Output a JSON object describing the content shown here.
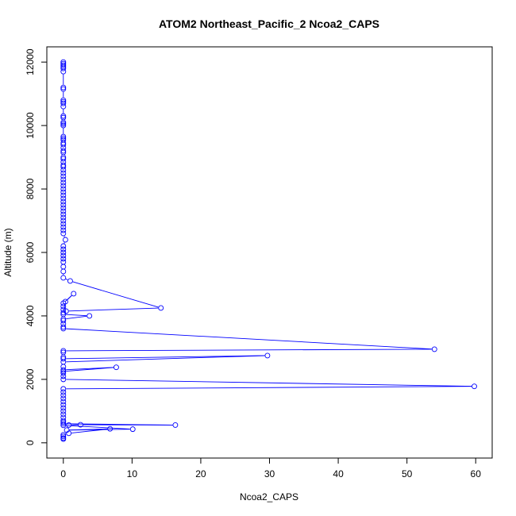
{
  "chart_data": {
    "type": "line",
    "title": "ATOM2 Northeast_Pacific_2 Ncoa2_CAPS",
    "xlabel": "Ncoa2_CAPS",
    "ylabel": "Altitude (m)",
    "xlim": [
      -2.4,
      62.4
    ],
    "ylim": [
      -480,
      12480
    ],
    "x_ticks": [
      0,
      10,
      20,
      30,
      40,
      50,
      60
    ],
    "y_ticks": [
      0,
      2000,
      4000,
      6000,
      8000,
      10000,
      12000
    ],
    "x_tick_labels": [
      "0",
      "10",
      "20",
      "30",
      "40",
      "50",
      "60"
    ],
    "y_tick_labels": [
      "0",
      "2000",
      "4000",
      "6000",
      "8000",
      "10000",
      "12000"
    ],
    "grid": false,
    "marker": "open-circle",
    "series": [
      {
        "color": "#0000ff",
        "points": [
          [
            0.0,
            12000
          ],
          [
            0.0,
            11950
          ],
          [
            0.0,
            11900
          ],
          [
            0.0,
            11850
          ],
          [
            0.0,
            11800
          ],
          [
            0.0,
            11700
          ],
          [
            0.0,
            11200
          ],
          [
            0.0,
            11150
          ],
          [
            0.0,
            10800
          ],
          [
            0.0,
            10750
          ],
          [
            0.0,
            10700
          ],
          [
            0.0,
            10600
          ],
          [
            0.0,
            10300
          ],
          [
            0.0,
            10250
          ],
          [
            0.0,
            10100
          ],
          [
            0.0,
            10050
          ],
          [
            0.0,
            10000
          ],
          [
            0.0,
            9650
          ],
          [
            0.0,
            9600
          ],
          [
            0.0,
            9550
          ],
          [
            0.0,
            9450
          ],
          [
            0.0,
            9400
          ],
          [
            0.0,
            9300
          ],
          [
            0.0,
            9200
          ],
          [
            0.0,
            9150
          ],
          [
            0.0,
            9000
          ],
          [
            0.0,
            8950
          ],
          [
            0.0,
            8850
          ],
          [
            0.0,
            8750
          ],
          [
            0.0,
            8700
          ],
          [
            0.0,
            8600
          ],
          [
            0.0,
            8500
          ],
          [
            0.0,
            8400
          ],
          [
            0.0,
            8300
          ],
          [
            0.0,
            8200
          ],
          [
            0.0,
            8100
          ],
          [
            0.0,
            8000
          ],
          [
            0.0,
            7900
          ],
          [
            0.0,
            7800
          ],
          [
            0.0,
            7700
          ],
          [
            0.0,
            7600
          ],
          [
            0.0,
            7500
          ],
          [
            0.0,
            7400
          ],
          [
            0.0,
            7300
          ],
          [
            0.0,
            7200
          ],
          [
            0.0,
            7100
          ],
          [
            0.0,
            7000
          ],
          [
            0.0,
            6900
          ],
          [
            0.0,
            6800
          ],
          [
            0.0,
            6700
          ],
          [
            0.0,
            6600
          ],
          [
            0.3,
            6400
          ],
          [
            0.0,
            6200
          ],
          [
            0.0,
            6100
          ],
          [
            0.0,
            6000
          ],
          [
            0.0,
            5900
          ],
          [
            0.0,
            5800
          ],
          [
            0.0,
            5700
          ],
          [
            0.0,
            5550
          ],
          [
            0.0,
            5400
          ],
          [
            0.0,
            5200
          ],
          [
            1.0,
            5100
          ],
          [
            14.2,
            4250
          ],
          [
            0.4,
            4150
          ],
          [
            0.0,
            4100
          ],
          [
            0.0,
            4200
          ],
          [
            0.0,
            4300
          ],
          [
            0.0,
            4400
          ],
          [
            1.5,
            4700
          ],
          [
            0.3,
            4450
          ],
          [
            0.0,
            4050
          ],
          [
            3.8,
            4000
          ],
          [
            0.0,
            3900
          ],
          [
            0.0,
            3850
          ],
          [
            0.0,
            3750
          ],
          [
            0.0,
            3650
          ],
          [
            0.0,
            3600
          ],
          [
            54.0,
            2950
          ],
          [
            0.0,
            2900
          ],
          [
            0.0,
            2850
          ],
          [
            0.0,
            2700
          ],
          [
            0.0,
            2650
          ],
          [
            29.7,
            2750
          ],
          [
            0.0,
            2550
          ],
          [
            0.0,
            2400
          ],
          [
            0.0,
            2300
          ],
          [
            7.7,
            2380
          ],
          [
            0.0,
            2250
          ],
          [
            0.0,
            2200
          ],
          [
            0.0,
            2100
          ],
          [
            0.0,
            2000
          ],
          [
            59.8,
            1780
          ],
          [
            0.0,
            1700
          ],
          [
            0.0,
            1600
          ],
          [
            0.0,
            1500
          ],
          [
            0.0,
            1400
          ],
          [
            0.0,
            1300
          ],
          [
            0.0,
            1200
          ],
          [
            0.0,
            1100
          ],
          [
            0.0,
            1000
          ],
          [
            0.0,
            900
          ],
          [
            0.0,
            800
          ],
          [
            0.0,
            700
          ],
          [
            0.0,
            650
          ],
          [
            0.0,
            600
          ],
          [
            16.3,
            560
          ],
          [
            2.5,
            570
          ],
          [
            0.8,
            560
          ],
          [
            0.0,
            550
          ],
          [
            10.1,
            430
          ],
          [
            0.5,
            400
          ],
          [
            6.8,
            440
          ],
          [
            0.8,
            300
          ],
          [
            0.0,
            250
          ],
          [
            0.0,
            200
          ],
          [
            0.0,
            150
          ],
          [
            0.0,
            120
          ]
        ]
      }
    ]
  }
}
